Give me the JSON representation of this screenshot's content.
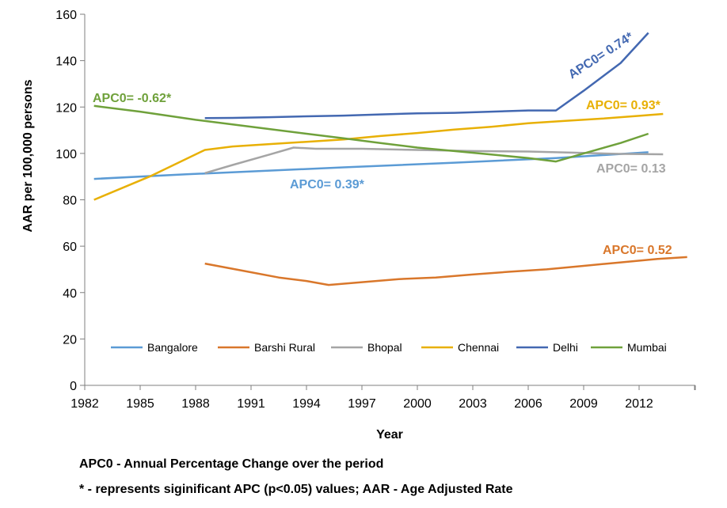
{
  "chart_data": {
    "type": "line",
    "xlabel": "Year",
    "ylabel": "AAR per 100,000 persons",
    "xlim": [
      1982,
      2015
    ],
    "ylim": [
      0,
      160
    ],
    "x_ticks": [
      "1982",
      "1985",
      "1988",
      "1991",
      "1994",
      "1997",
      "2000",
      "2003",
      "2006",
      "2009",
      "2012"
    ],
    "y_ticks": [
      "0",
      "20",
      "40",
      "60",
      "80",
      "100",
      "120",
      "140",
      "160"
    ],
    "legend_position": "inside-bottom",
    "grid": false,
    "series": [
      {
        "name": "Bangalore",
        "color": "#5b9bd5",
        "points": [
          [
            1982.5,
            89
          ],
          [
            1987.5,
            91
          ],
          [
            1996,
            94
          ],
          [
            2002,
            96
          ],
          [
            2007.5,
            98
          ],
          [
            2012.5,
            100.5
          ]
        ]
      },
      {
        "name": "Barshi Rural",
        "color": "#d9772b",
        "points": [
          [
            1988.5,
            52.5
          ],
          [
            1990.5,
            49.5
          ],
          [
            1992.5,
            46.5
          ],
          [
            1994,
            45
          ],
          [
            1995.2,
            43.3
          ],
          [
            1997,
            44.5
          ],
          [
            1999,
            45.8
          ],
          [
            2001,
            46.5
          ],
          [
            2003,
            47.8
          ],
          [
            2005,
            49
          ],
          [
            2007,
            50
          ],
          [
            2009,
            51.5
          ],
          [
            2011,
            53
          ],
          [
            2013,
            54.5
          ],
          [
            2014.6,
            55.3
          ]
        ]
      },
      {
        "name": "Bhopal",
        "color": "#a5a5a5",
        "points": [
          [
            1988.5,
            91.5
          ],
          [
            1990,
            95
          ],
          [
            1992,
            99.5
          ],
          [
            1993.3,
            102.5
          ],
          [
            1994.5,
            102
          ],
          [
            1997,
            102
          ],
          [
            2000,
            101.5
          ],
          [
            2003,
            101
          ],
          [
            2006,
            100.8
          ],
          [
            2009,
            100.2
          ],
          [
            2011,
            99.8
          ],
          [
            2013.3,
            99.6
          ]
        ]
      },
      {
        "name": "Chennai",
        "color": "#e8b005",
        "points": [
          [
            1982.5,
            80
          ],
          [
            1985.5,
            90
          ],
          [
            1988.5,
            101.5
          ],
          [
            1990,
            103
          ],
          [
            1992,
            104
          ],
          [
            1994,
            105
          ],
          [
            1996,
            106
          ],
          [
            1998,
            107.5
          ],
          [
            2000,
            108.8
          ],
          [
            2002,
            110.3
          ],
          [
            2004,
            111.5
          ],
          [
            2006,
            113
          ],
          [
            2008,
            114
          ],
          [
            2010,
            115
          ],
          [
            2012,
            116.2
          ],
          [
            2013.3,
            117
          ]
        ]
      },
      {
        "name": "Delhi",
        "color": "#4368b1",
        "points": [
          [
            1988.5,
            115.2
          ],
          [
            1990,
            115.3
          ],
          [
            1992,
            115.6
          ],
          [
            1994,
            116
          ],
          [
            1996,
            116.3
          ],
          [
            1998,
            116.8
          ],
          [
            2000,
            117.3
          ],
          [
            2002,
            117.5
          ],
          [
            2004,
            118
          ],
          [
            2006,
            118.5
          ],
          [
            2007.5,
            118.5
          ],
          [
            2009,
            127
          ],
          [
            2011,
            139
          ],
          [
            2012.5,
            152
          ]
        ]
      },
      {
        "name": "Mumbai",
        "color": "#6fa13b",
        "points": [
          [
            1982.5,
            120.5
          ],
          [
            1985,
            118
          ],
          [
            1988,
            114.5
          ],
          [
            1990,
            112.5
          ],
          [
            1992,
            110.5
          ],
          [
            1994,
            108.5
          ],
          [
            1996,
            106.5
          ],
          [
            1998,
            104.5
          ],
          [
            2000,
            102.5
          ],
          [
            2002,
            101
          ],
          [
            2004,
            99.5
          ],
          [
            2006,
            98
          ],
          [
            2007.5,
            96.5
          ],
          [
            2009,
            100
          ],
          [
            2011,
            104.5
          ],
          [
            2012.5,
            108.5
          ]
        ]
      }
    ],
    "annotations": [
      {
        "text": "APC0= 0.74*",
        "color": "#4368b1",
        "series": "Delhi"
      },
      {
        "text": "APC0= -0.62*",
        "color": "#6fa13b",
        "series": "Mumbai"
      },
      {
        "text": "APC0= 0.93*",
        "color": "#e8b005",
        "series": "Chennai"
      },
      {
        "text": "APC0= 0.13",
        "color": "#a5a5a5",
        "series": "Bhopal"
      },
      {
        "text": "APC0= 0.39*",
        "color": "#5b9bd5",
        "series": "Bangalore"
      },
      {
        "text": "APC0= 0.52",
        "color": "#d9772b",
        "series": "Barshi Rural"
      }
    ]
  },
  "footnotes": {
    "line1": "APC0 - Annual Percentage Change over the period",
    "line2": "* - represents siginificant APC (p<0.05) values; AAR - Age Adjusted Rate"
  }
}
